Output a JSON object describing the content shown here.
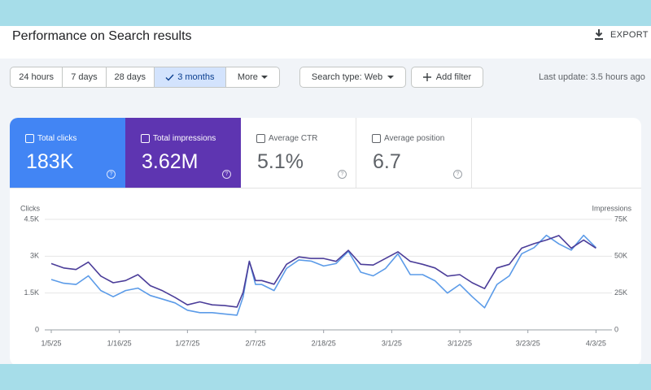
{
  "header": {
    "title": "Performance on Search results",
    "export": "EXPORT"
  },
  "filters": {
    "date_ranges": [
      "24 hours",
      "7 days",
      "28 days",
      "3 months"
    ],
    "more": "More",
    "search_type": "Search type: Web",
    "add_filter": "Add filter",
    "last_update": "Last update: 3.5 hours ago"
  },
  "metrics": [
    {
      "label": "Total clicks",
      "value": "183K"
    },
    {
      "label": "Total impressions",
      "value": "3.62M"
    },
    {
      "label": "Average CTR",
      "value": "5.1%"
    },
    {
      "label": "Average position",
      "value": "6.7"
    }
  ],
  "chart_data": {
    "type": "line",
    "x": [
      "2025-01-05",
      "2025-01-07",
      "2025-01-09",
      "2025-01-11",
      "2025-01-13",
      "2025-01-15",
      "2025-01-17",
      "2025-01-19",
      "2025-01-21",
      "2025-01-23",
      "2025-01-25",
      "2025-01-27",
      "2025-01-29",
      "2025-01-31",
      "2025-02-02",
      "2025-02-04",
      "2025-02-05",
      "2025-02-06",
      "2025-02-07",
      "2025-02-08",
      "2025-02-10",
      "2025-02-12",
      "2025-02-14",
      "2025-02-16",
      "2025-02-18",
      "2025-02-20",
      "2025-02-22",
      "2025-02-24",
      "2025-02-26",
      "2025-02-28",
      "2025-03-02",
      "2025-03-04",
      "2025-03-06",
      "2025-03-08",
      "2025-03-10",
      "2025-03-12",
      "2025-03-14",
      "2025-03-16",
      "2025-03-18",
      "2025-03-20",
      "2025-03-22",
      "2025-03-24",
      "2025-03-26",
      "2025-03-28",
      "2025-03-30",
      "2025-04-01",
      "2025-04-03"
    ],
    "series": [
      {
        "name": "Clicks",
        "color": "#5b9be8",
        "values": [
          2050,
          1900,
          1850,
          2200,
          1600,
          1350,
          1600,
          1700,
          1400,
          1250,
          1100,
          800,
          700,
          700,
          650,
          600,
          1350,
          2800,
          1850,
          1850,
          1600,
          2500,
          2850,
          2800,
          2600,
          2700,
          3200,
          2350,
          2200,
          2500,
          3100,
          2250,
          2250,
          2000,
          1500,
          1850,
          1350,
          900,
          1850,
          2200,
          3100,
          3350,
          3850,
          3500,
          3250,
          3850,
          3350
        ]
      },
      {
        "name": "Impressions",
        "color": "#4b3d99",
        "axis": "y2",
        "values": [
          45000,
          42000,
          41000,
          46000,
          36500,
          32000,
          33500,
          37500,
          30000,
          26500,
          22000,
          17000,
          19000,
          17000,
          16500,
          15500,
          25500,
          46500,
          33500,
          33500,
          31000,
          44500,
          49500,
          48500,
          48500,
          46500,
          54000,
          44500,
          44000,
          48500,
          53000,
          46500,
          44500,
          42000,
          36500,
          37500,
          32000,
          28000,
          42000,
          44500,
          55500,
          58500,
          61000,
          64000,
          55500,
          61000,
          55500
        ]
      }
    ],
    "xlim": [
      "2025-01-05",
      "2025-04-04"
    ],
    "xticks": [
      {
        "value": "2025-01-05",
        "label": "1/5/25"
      },
      {
        "value": "2025-01-16",
        "label": "1/16/25"
      },
      {
        "value": "2025-01-27",
        "label": "1/27/25"
      },
      {
        "value": "2025-02-07",
        "label": "2/7/25"
      },
      {
        "value": "2025-02-18",
        "label": "2/18/25"
      },
      {
        "value": "2025-03-01",
        "label": "3/1/25"
      },
      {
        "value": "2025-03-12",
        "label": "3/12/25"
      },
      {
        "value": "2025-03-23",
        "label": "3/23/25"
      },
      {
        "value": "2025-04-03",
        "label": "4/3/25"
      }
    ],
    "ylim": [
      0,
      4500
    ],
    "yticks": [
      0,
      {
        "value": 1500,
        "label": "1.5K"
      },
      {
        "value": 3000,
        "label": "3K"
      },
      {
        "value": 4500,
        "label": "4.5K"
      }
    ],
    "y2lim": [
      0,
      75000
    ],
    "y2ticks": [
      0,
      {
        "value": 25000,
        "label": "25K"
      },
      {
        "value": 50000,
        "label": "50K"
      },
      {
        "value": 75000,
        "label": "75K"
      }
    ],
    "grid": true
  }
}
